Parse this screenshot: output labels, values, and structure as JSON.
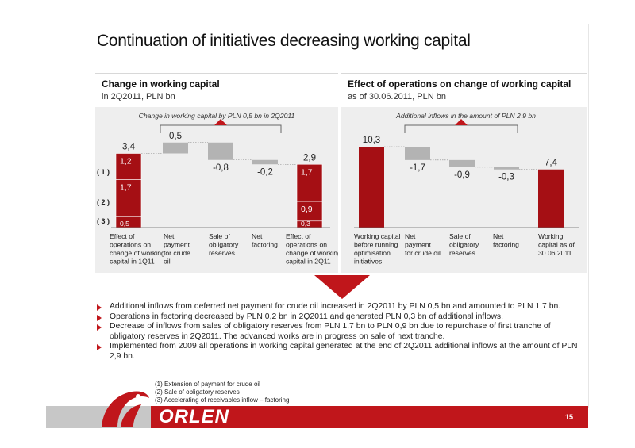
{
  "title": "Continuation of initiatives decreasing working capital",
  "page_number": "15",
  "logo_text": "ORLEN",
  "colors": {
    "accent_red": "#c0161b",
    "dark_red": "#a50f14",
    "bar_grey": "#b3b3b3",
    "panel_bg": "#eeeeee"
  },
  "left_panel": {
    "title": "Change in working capital",
    "subtitle": "in 2Q2011, PLN bn",
    "bracket_caption": "Change in working capital by PLN 0,5 bn in 2Q2011",
    "row_markers": [
      "( 1 )",
      "( 2 )",
      "( 3 )"
    ],
    "x_labels": [
      [
        "Effect of",
        "operations on",
        "change of working",
        "capital in 1Q11"
      ],
      [
        "Net",
        "payment",
        "for crude",
        "oil"
      ],
      [
        "Sale of",
        "obligatory",
        "reserves"
      ],
      [
        "Net",
        "factoring"
      ],
      [
        "Effect of",
        "operations on",
        "change of working",
        "capital in 2Q11"
      ]
    ]
  },
  "right_panel": {
    "title": "Effect of operations on change of working capital",
    "subtitle": "as of 30.06.2011, PLN bn",
    "bracket_caption": "Additional inflows in the amount of PLN 2,9 bn",
    "x_labels": [
      [
        "Working capital",
        "before running",
        "optimisation",
        "initiatives"
      ],
      [
        "Net",
        "payment",
        "for crude oil"
      ],
      [
        "Sale of",
        "obligatory",
        "reserves"
      ],
      [
        "Net",
        "factoring"
      ],
      [
        "Working",
        "capital as of",
        "30.06.2011"
      ]
    ]
  },
  "chart_data": [
    {
      "type": "bar",
      "subtype": "waterfall",
      "title": "Change in working capital",
      "subtitle": "in 2Q2011, PLN bn",
      "categories": [
        "Effect of operations on change of working capital in 1Q11",
        "Net payment for crude oil",
        "Sale of obligatory reserves",
        "Net factoring",
        "Effect of operations on change of working capital in 2Q11"
      ],
      "bars": [
        {
          "category": "Effect of operations on change of working capital in 1Q11",
          "total": 3.4,
          "label": "3,4",
          "stack": [
            {
              "component": "( 3 )",
              "value": 0.5,
              "label": "0,5"
            },
            {
              "component": "( 2 )",
              "value": 1.7,
              "label": "1,7"
            },
            {
              "component": "( 1 )",
              "value": 1.2,
              "label": "1,2"
            }
          ]
        },
        {
          "category": "Net payment for crude oil",
          "delta": 0.5,
          "label": "0,5"
        },
        {
          "category": "Sale of obligatory reserves",
          "delta": -0.8,
          "label": "-0,8"
        },
        {
          "category": "Net factoring",
          "delta": -0.2,
          "label": "-0,2"
        },
        {
          "category": "Effect of operations on change of working capital in 2Q11",
          "total": 2.9,
          "label": "2,9",
          "stack": [
            {
              "component": "( 3 )",
              "value": 0.3,
              "label": "0,3"
            },
            {
              "component": "( 2 )",
              "value": 0.9,
              "label": "0,9"
            },
            {
              "component": "( 1 )",
              "value": 1.7,
              "label": "1,7"
            }
          ]
        }
      ],
      "legend": [
        "( 1 )",
        "( 2 )",
        "( 3 )"
      ],
      "annotation": "Change in working capital by PLN 0,5 bn in 2Q2011"
    },
    {
      "type": "bar",
      "subtype": "waterfall",
      "title": "Effect of operations on change of working capital",
      "subtitle": "as of 30.06.2011, PLN bn",
      "categories": [
        "Working capital before running optimisation initiatives",
        "Net payment for crude oil",
        "Sale of obligatory reserves",
        "Net factoring",
        "Working capital as of 30.06.2011"
      ],
      "bars": [
        {
          "category": "Working capital before running optimisation initiatives",
          "total": 10.3,
          "label": "10,3"
        },
        {
          "category": "Net payment for crude oil",
          "delta": -1.7,
          "label": "-1,7"
        },
        {
          "category": "Sale of obligatory reserves",
          "delta": -0.9,
          "label": "-0,9"
        },
        {
          "category": "Net factoring",
          "delta": -0.3,
          "label": "-0,3"
        },
        {
          "category": "Working capital as of 30.06.2011",
          "total": 7.4,
          "label": "7,4"
        }
      ],
      "annotation": "Additional inflows in the amount of PLN 2,9 bn"
    }
  ],
  "bullets": [
    "Additional inflows from deferred net payment for crude oil increased in 2Q2011 by PLN 0,5 bn and amounted to PLN 1,7 bn.",
    "Operations in factoring decreased by PLN 0,2 bn in 2Q2011 and generated PLN 0,3 bn of additional inflows.",
    "Decrease of inflows from sales of obligatory reserves from PLN 1,7 bn to PLN 0,9 bn due to repurchase of first tranche of obligatory reserves in 2Q2011. The advanced works are in progress on sale of next tranche.",
    "Implemented from 2009 all operations in working capital generated at the end of 2Q2011 additional inflows at the amount of PLN 2,9 bn."
  ],
  "footnotes": [
    "(1) Extension of payment for crude oil",
    "(2) Sale of obligatory reserves",
    "(3) Accelerating of  receivables inflow – factoring"
  ]
}
